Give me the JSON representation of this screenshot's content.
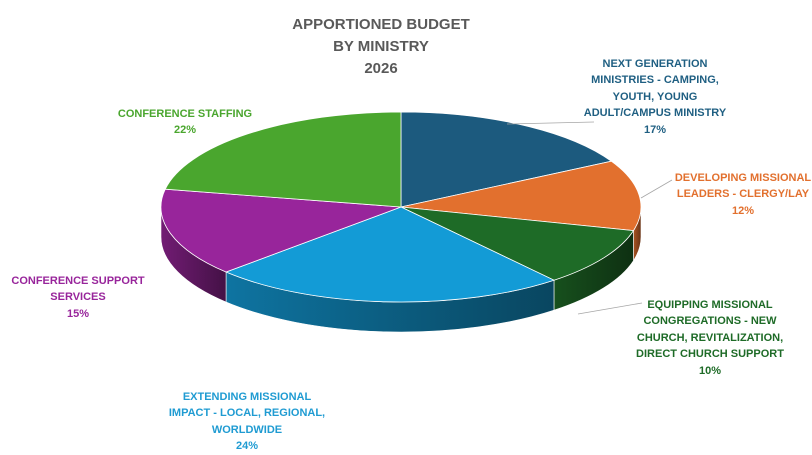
{
  "chart_data": {
    "type": "pie",
    "title_lines": [
      "APPORTIONED BUDGET",
      "BY MINISTRY",
      "2026"
    ],
    "slices": [
      {
        "label_lines": [
          "NEXT GENERATION",
          "MINISTRIES - CAMPING,",
          "YOUTH, YOUNG",
          "ADULT/CAMPUS MINISTRY"
        ],
        "value": 17,
        "pct_label": "17%",
        "color": "#1c5a7e",
        "label_color": "#1f5f82"
      },
      {
        "label_lines": [
          "DEVELOPING MISSIONAL",
          "LEADERS - CLERGY/LAY"
        ],
        "value": 12,
        "pct_label": "12%",
        "color": "#e2702e",
        "label_color": "#e2702e"
      },
      {
        "label_lines": [
          "EQUIPPING MISSIONAL",
          "CONGREGATIONS - NEW",
          "CHURCH, REVITALIZATION,",
          "DIRECT CHURCH SUPPORT"
        ],
        "value": 10,
        "pct_label": "10%",
        "color": "#1e6b27",
        "label_color": "#1e6b27"
      },
      {
        "label_lines": [
          "EXTENDING MISSIONAL",
          "IMPACT - LOCAL, REGIONAL,",
          "WORLDWIDE"
        ],
        "value": 24,
        "pct_label": "24%",
        "color": "#139bd6",
        "label_color": "#1f9bd2"
      },
      {
        "label_lines": [
          "CONFERENCE SUPPORT",
          "SERVICES"
        ],
        "value": 15,
        "pct_label": "15%",
        "color": "#98259b",
        "label_color": "#98259b"
      },
      {
        "label_lines": [
          "CONFERENCE STAFFING"
        ],
        "value": 22,
        "pct_label": "22%",
        "color": "#4aa62e",
        "label_color": "#4aa62e"
      }
    ],
    "legend": "none"
  }
}
